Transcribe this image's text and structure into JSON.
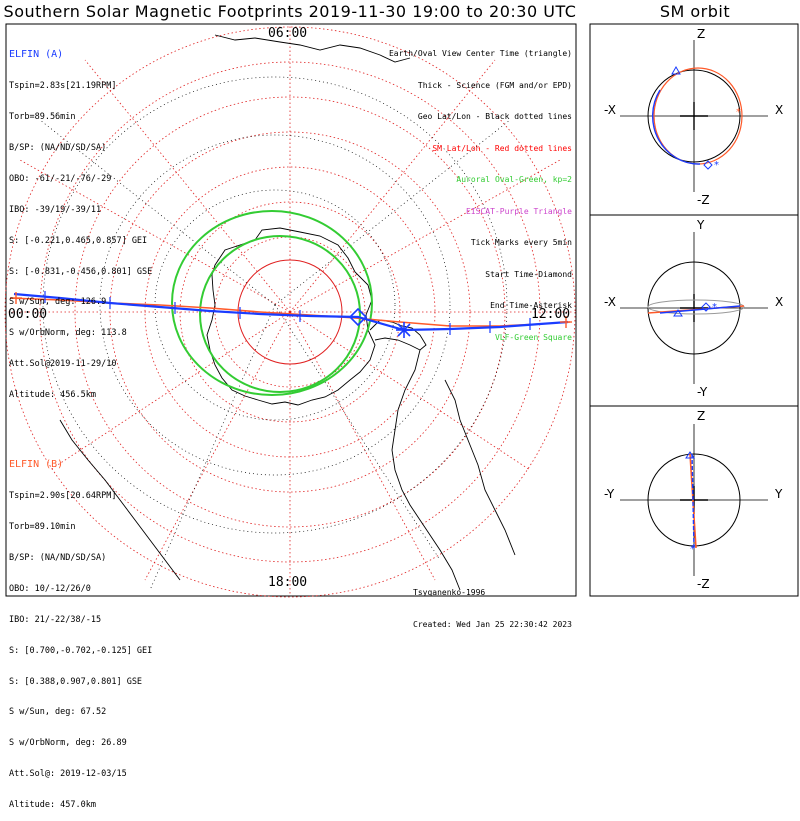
{
  "title": "Southern Solar Magnetic Footprints 2019-11-30 19:00 to 20:30 UTC",
  "sm_title": "SM orbit",
  "hour_labels": {
    "top": "06:00",
    "left": "00:00",
    "right": "12:00",
    "bottom": "18:00"
  },
  "elfin_a": {
    "name": "ELFIN (A)",
    "color": "#1a3cff",
    "lines": [
      "Tspin=2.83s[21.19RPM]",
      "Torb=89.56min",
      "B/SP: (NA/ND/SD/SA)",
      "OBO: -61/-21/-76/-29",
      "IBO: -39/19/-39/11",
      "S: [-0.221,0.465,0.857] GEI",
      "S: [-0.831,-0.456,0.801] GSE",
      "S w/Sun, deg: 126.9",
      "S w/OrbNorm, deg: 113.8",
      "Att.Sol@2019-11-29/10",
      "Altitude: 456.5km"
    ]
  },
  "elfin_b": {
    "name": "ELFIN (B)",
    "color": "#ff5a2a",
    "lines": [
      "Tspin=2.90s[20.64RPM]",
      "Torb=89.10min",
      "B/SP: (NA/ND/SD/SA)",
      "OBO: 10/-12/26/0",
      "IBO: 21/-22/38/-15",
      "S: [0.700,-0.702,-0.125] GEI",
      "S: [0.388,0.907,0.801] GSE",
      "S w/Sun, deg: 67.52",
      "S w/OrbNorm, deg: 26.89",
      "Att.Sol@: 2019-12-03/15",
      "Altitude: 457.0km"
    ]
  },
  "legend": [
    {
      "text": "Earth/Oval View Center Time (triangle)",
      "color": "#000000"
    },
    {
      "text": "Thick - Science (FGM and/or EPD)",
      "color": "#000000"
    },
    {
      "text": "Geo Lat/Lon - Black dotted lines",
      "color": "#000000"
    },
    {
      "text": "SM Lat/Lon - Red dotted lines",
      "color": "#ff0000"
    },
    {
      "text": "Auroral Oval-Green, kp=2",
      "color": "#33cc33"
    },
    {
      "text": "EISCAT-Purple Triangle",
      "color": "#cc44cc"
    },
    {
      "text": "Tick Marks every 5min",
      "color": "#000000"
    },
    {
      "text": "Start Time-Diamond",
      "color": "#000000"
    },
    {
      "text": "End Time-Asterisk",
      "color": "#000000"
    },
    {
      "text": "VLF-Green Square",
      "color": "#33cc33"
    }
  ],
  "credits": [
    "Tsyganenko-1996",
    "Created: Wed Jan 25 22:30:42 2023"
  ],
  "sm_panels": [
    {
      "top": "Z",
      "bottom": "-Z",
      "left": "-X",
      "right": "X"
    },
    {
      "top": "Y",
      "bottom": "-Y",
      "left": "-X",
      "right": "X"
    },
    {
      "top": "Z",
      "bottom": "-Z",
      "left": "-Y",
      "right": "Y"
    }
  ]
}
